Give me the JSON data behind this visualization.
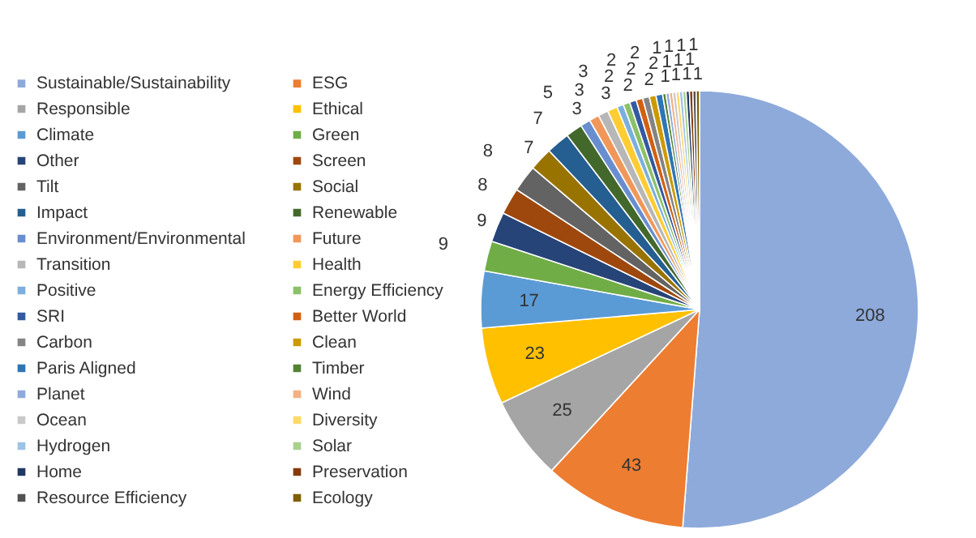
{
  "chart_data": {
    "type": "pie",
    "categories": [
      "Sustainable/Sustainability",
      "ESG",
      "Responsible",
      "Ethical",
      "Climate",
      "Green",
      "Other",
      "Screen",
      "Tilt",
      "Social",
      "Impact",
      "Renewable",
      "Environment/Environmental",
      "Future",
      "Transition",
      "Health",
      "Positive",
      "Energy Efficiency",
      "SRI",
      "Better World",
      "Carbon",
      "Clean",
      "Paris Aligned",
      "Timber",
      "Planet",
      "Wind",
      "Ocean",
      "Diversity",
      "Hydrogen",
      "Solar",
      "Home",
      "Preservation",
      "Resource Efficiency",
      "Ecology"
    ],
    "values": [
      208,
      43,
      25,
      23,
      17,
      9,
      9,
      8,
      8,
      7,
      7,
      5,
      3,
      3,
      3,
      3,
      2,
      2,
      2,
      2,
      2,
      2,
      2,
      1,
      1,
      1,
      1,
      1,
      1,
      1,
      1,
      1,
      1,
      1
    ],
    "colors": [
      "#8eaadb",
      "#ed7d31",
      "#a5a5a5",
      "#ffc000",
      "#5b9bd5",
      "#70ad47",
      "#264478",
      "#9e480e",
      "#636363",
      "#997300",
      "#255e91",
      "#43682b",
      "#698ed0",
      "#f1975a",
      "#b7b7b7",
      "#ffcd33",
      "#7cafdd",
      "#8cc168",
      "#335aa1",
      "#d26012",
      "#848484",
      "#cc9a00",
      "#2e75b6",
      "#548235",
      "#8faadc",
      "#f4b183",
      "#c9c9c9",
      "#ffd966",
      "#9dc3e6",
      "#a9d18e",
      "#1f3864",
      "#843c0c",
      "#525252",
      "#7f6000"
    ],
    "data_labels": true,
    "legend": "left"
  }
}
